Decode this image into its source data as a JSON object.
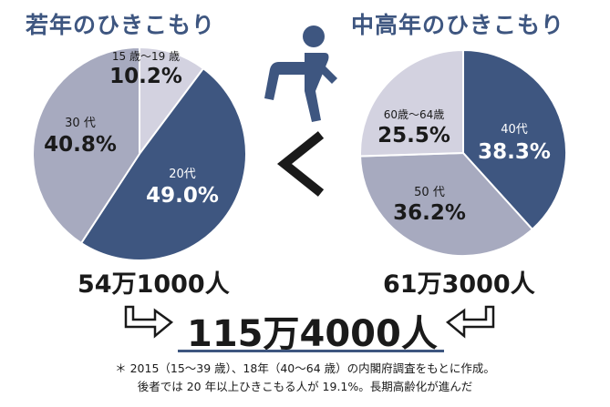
{
  "titles": {
    "left": "若年のひきこもり",
    "right": "中高年のひきこもり"
  },
  "chart_data": [
    {
      "type": "pie",
      "title": "若年のひきこもり",
      "slices": [
        {
          "label": "15 歳〜19 歳",
          "value": 10.2,
          "value_text": "10.2%",
          "color": "#d3d2e0"
        },
        {
          "label": "20代",
          "value": 49.0,
          "value_text": "49.0%",
          "color": "#3e5680"
        },
        {
          "label": "30 代",
          "value": 40.8,
          "value_text": "40.8%",
          "color": "#a7aabf"
        }
      ],
      "total": "54万1000人"
    },
    {
      "type": "pie",
      "title": "中高年のひきこもり",
      "slices": [
        {
          "label": "40代",
          "value": 38.3,
          "value_text": "38.3%",
          "color": "#3e5680"
        },
        {
          "label": "50 代",
          "value": 36.2,
          "value_text": "36.2%",
          "color": "#a7aabf"
        },
        {
          "label": "60歳〜64歳",
          "value": 25.5,
          "value_text": "25.5%",
          "color": "#d3d2e0"
        }
      ],
      "total": "61万3000人"
    }
  ],
  "comparison_symbol": "<",
  "grand_total": "115万4000人",
  "notes": [
    "＊ 2015（15〜39 歳）、18年（40〜64 歳）の内閣府調査をもとに作成。",
    "後者では 20 年以上ひきこもる人が 19.1%。長期高齢化が進んだ"
  ],
  "icons": [
    "sitting-person-icon",
    "less-than-icon",
    "arrow-right-icon",
    "arrow-left-icon"
  ]
}
